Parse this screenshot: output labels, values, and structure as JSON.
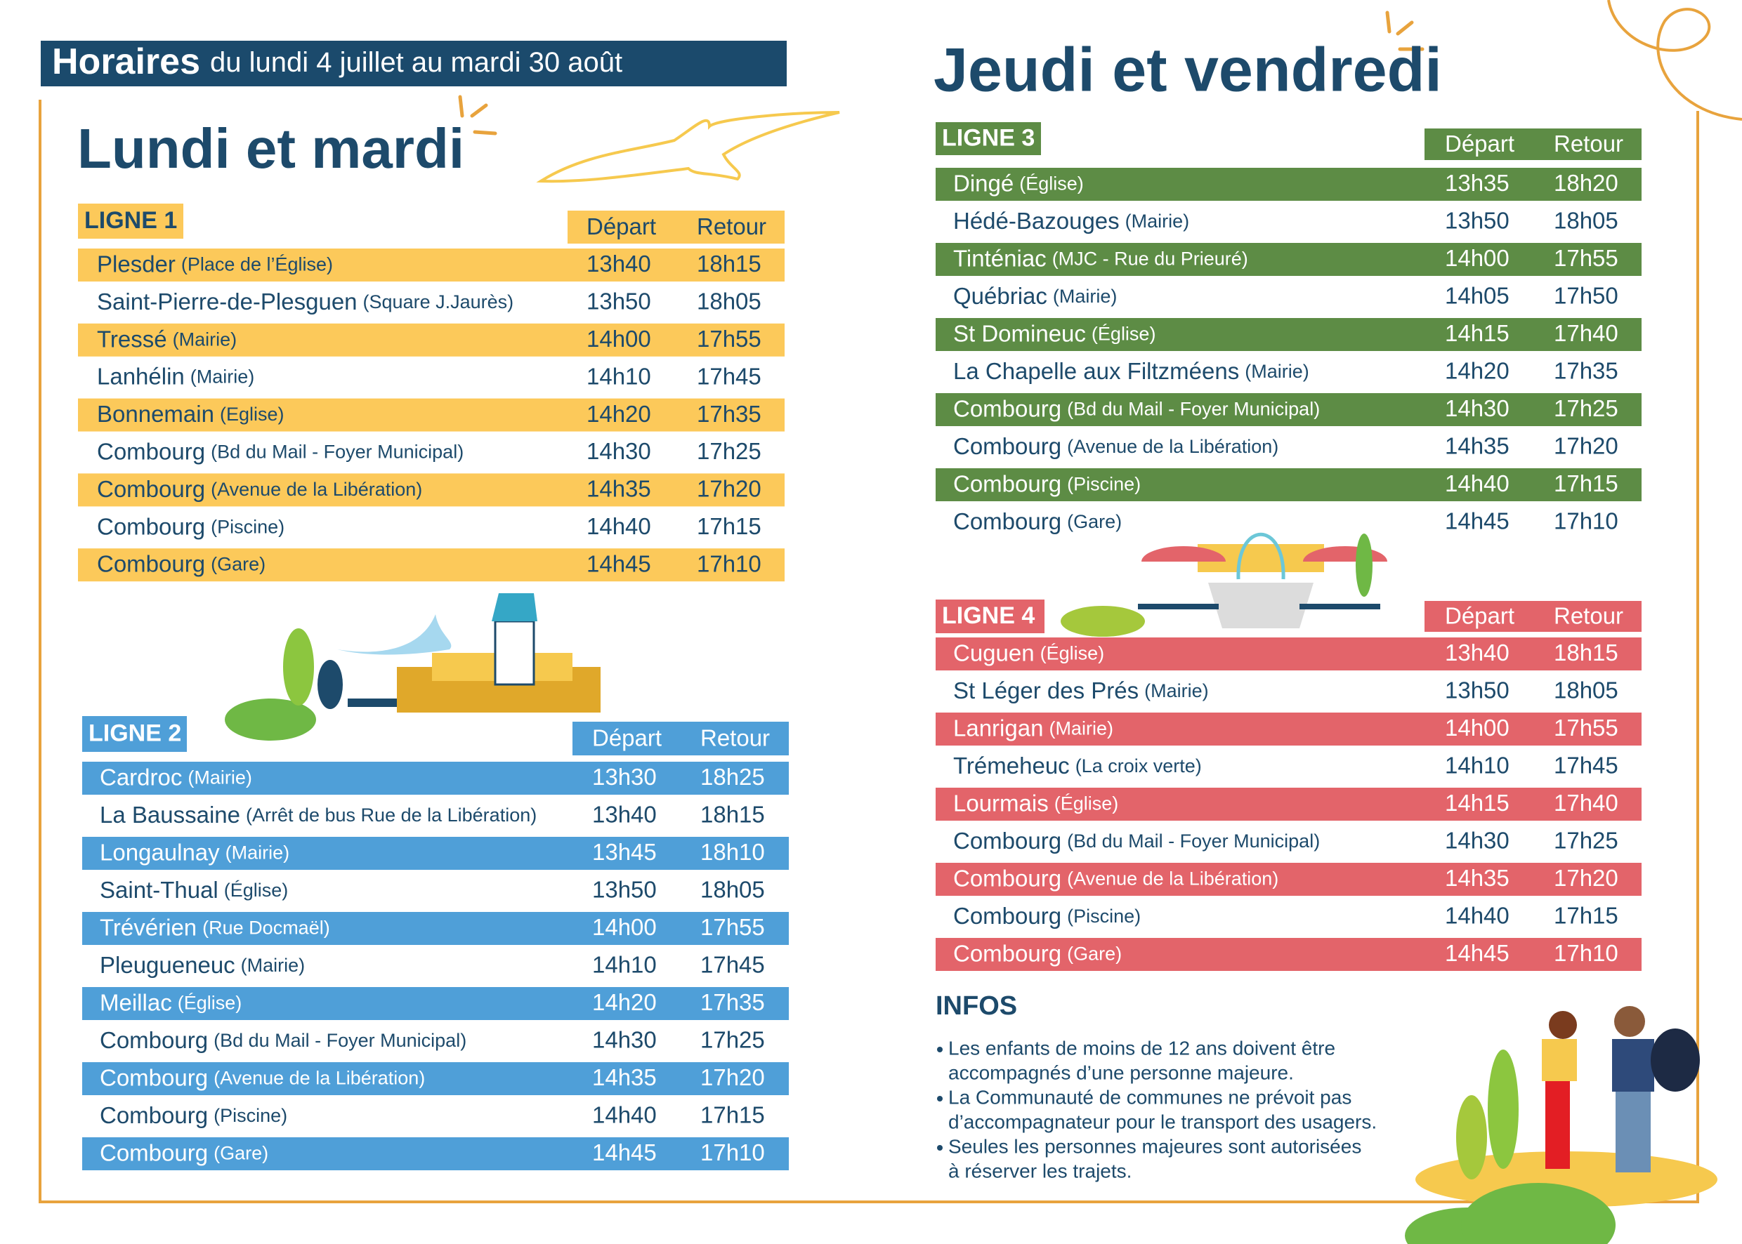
{
  "header": {
    "title": "Horaires",
    "subtitle": "du lundi 4 juillet au mardi 30 août"
  },
  "panels": [
    {
      "heading": "Lundi et mardi",
      "lines": [
        {
          "label": "LIGNE 1",
          "color": "#fcc95a",
          "text_color": "#1d4a6b",
          "columns": [
            "Départ",
            "Retour"
          ],
          "rows": [
            [
              "Plesder",
              "(Place de l’Église)",
              "13h40",
              "18h15"
            ],
            [
              "Saint-Pierre-de-Plesguen",
              "(Square J.Jaurès)",
              "13h50",
              "18h05"
            ],
            [
              "Tressé",
              "(Mairie)",
              "14h00",
              "17h55"
            ],
            [
              "Lanhélin",
              "(Mairie)",
              "14h10",
              "17h45"
            ],
            [
              "Bonnemain",
              "(Eglise)",
              "14h20",
              "17h35"
            ],
            [
              "Combourg",
              "(Bd du Mail - Foyer Municipal)",
              "14h30",
              "17h25"
            ],
            [
              "Combourg",
              "(Avenue de la Libération)",
              "14h35",
              "17h20"
            ],
            [
              "Combourg",
              "(Piscine)",
              "14h40",
              "17h15"
            ],
            [
              "Combourg",
              "(Gare)",
              "14h45",
              "17h10"
            ]
          ]
        },
        {
          "label": "LIGNE 2",
          "color": "#4f9fd8",
          "text_color": "#ffffff",
          "columns": [
            "Départ",
            "Retour"
          ],
          "rows": [
            [
              "Cardroc",
              "(Mairie)",
              "13h30",
              "18h25"
            ],
            [
              "La Baussaine",
              "(Arrêt de bus Rue de la Libération)",
              "13h40",
              "18h15"
            ],
            [
              "Longaulnay",
              "(Mairie)",
              "13h45",
              "18h10"
            ],
            [
              "Saint-Thual",
              "(Église)",
              "13h50",
              "18h05"
            ],
            [
              "Trévérien",
              "(Rue Docmaël)",
              "14h00",
              "17h55"
            ],
            [
              "Pleugueneuc",
              "(Mairie)",
              "14h10",
              "17h45"
            ],
            [
              "Meillac",
              "(Église)",
              "14h20",
              "17h35"
            ],
            [
              "Combourg",
              "(Bd du Mail - Foyer Municipal)",
              "14h30",
              "17h25"
            ],
            [
              "Combourg",
              "(Avenue de la Libération)",
              "14h35",
              "17h20"
            ],
            [
              "Combourg",
              "(Piscine)",
              "14h40",
              "17h15"
            ],
            [
              "Combourg",
              "(Gare)",
              "14h45",
              "17h10"
            ]
          ]
        }
      ]
    },
    {
      "heading": "Jeudi et vendredi",
      "lines": [
        {
          "label": "LIGNE 3",
          "color": "#5d8c45",
          "text_color": "#ffffff",
          "columns": [
            "Départ",
            "Retour"
          ],
          "rows": [
            [
              "Dingé",
              "(Église)",
              "13h35",
              "18h20"
            ],
            [
              "Hédé-Bazouges",
              "(Mairie)",
              "13h50",
              "18h05"
            ],
            [
              "Tinténiac",
              "(MJC - Rue du Prieuré)",
              "14h00",
              "17h55"
            ],
            [
              "Québriac",
              "(Mairie)",
              "14h05",
              "17h50"
            ],
            [
              "St Domineuc",
              "(Église)",
              "14h15",
              "17h40"
            ],
            [
              "La Chapelle aux Filtzméens",
              "(Mairie)",
              "14h20",
              "17h35"
            ],
            [
              "Combourg",
              "(Bd du Mail - Foyer Municipal)",
              "14h30",
              "17h25"
            ],
            [
              "Combourg",
              "(Avenue de la Libération)",
              "14h35",
              "17h20"
            ],
            [
              "Combourg",
              "(Piscine)",
              "14h40",
              "17h15"
            ],
            [
              "Combourg",
              "(Gare)",
              "14h45",
              "17h10"
            ]
          ]
        },
        {
          "label": "LIGNE 4",
          "color": "#e3646a",
          "text_color": "#ffffff",
          "columns": [
            "Départ",
            "Retour"
          ],
          "rows": [
            [
              "Cuguen",
              "(Église)",
              "13h40",
              "18h15"
            ],
            [
              "St Léger des Prés",
              "(Mairie)",
              "13h50",
              "18h05"
            ],
            [
              "Lanrigan",
              "(Mairie)",
              "14h00",
              "17h55"
            ],
            [
              "Trémeheuc",
              "(La croix verte)",
              "14h10",
              "17h45"
            ],
            [
              "Lourmais",
              "(Église)",
              "14h15",
              "17h40"
            ],
            [
              "Combourg",
              "(Bd du Mail - Foyer Municipal)",
              "14h30",
              "17h25"
            ],
            [
              "Combourg",
              "(Avenue de la Libération)",
              "14h35",
              "17h20"
            ],
            [
              "Combourg",
              "(Piscine)",
              "14h40",
              "17h15"
            ],
            [
              "Combourg",
              "(Gare)",
              "14h45",
              "17h10"
            ]
          ]
        }
      ]
    }
  ],
  "infos": {
    "title": "INFOS",
    "items": [
      [
        "Les enfants de moins de 12 ans doivent être",
        "accompagnés d’une personne majeure."
      ],
      [
        "La Communauté de communes ne prévoit pas",
        "d’accompagnateur pour le transport des usagers."
      ],
      [
        "Seules les personnes majeures sont autorisées",
        "à réserver les trajets."
      ]
    ]
  }
}
